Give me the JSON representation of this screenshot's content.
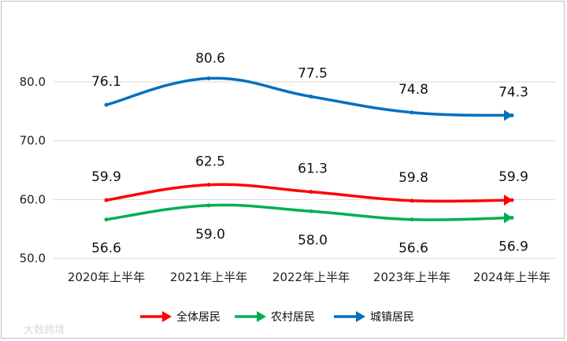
{
  "chart_data": {
    "type": "line",
    "categories": [
      "2020年上半年",
      "2021年上半年",
      "2022年上半年",
      "2023年上半年",
      "2024年上半年"
    ],
    "series": [
      {
        "name": "全体居民",
        "color": "#ff0000",
        "values": [
          59.9,
          62.5,
          61.3,
          59.8,
          59.9
        ]
      },
      {
        "name": "农村居民",
        "color": "#00b050",
        "values": [
          56.6,
          59.0,
          58.0,
          56.6,
          56.9
        ]
      },
      {
        "name": "城镇居民",
        "color": "#0070c0",
        "values": [
          76.1,
          80.6,
          77.5,
          74.8,
          74.3
        ]
      }
    ],
    "yticks": [
      "50.0",
      "60.0",
      "70.0",
      "80.0"
    ],
    "ylim": [
      50,
      83
    ],
    "grid": true,
    "legend_position": "bottom",
    "smooth": true,
    "title": "",
    "xlabel": "",
    "ylabel": ""
  },
  "watermark": "大数跨境"
}
